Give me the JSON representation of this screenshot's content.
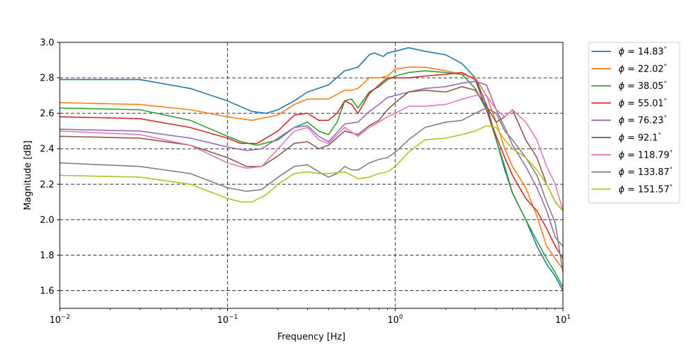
{
  "chart_data": {
    "type": "line",
    "xlabel": "Frequency [Hz]",
    "ylabel": "Magnitude [dB]",
    "xscale": "log",
    "xlim": [
      0.01,
      10
    ],
    "ylim": [
      1.5,
      3.0
    ],
    "grid": "dashed",
    "legend_placement": "outside-right",
    "x_ticks": [
      {
        "value": 0.01,
        "base": "10",
        "exp": "−2"
      },
      {
        "value": 0.1,
        "base": "10",
        "exp": "−1"
      },
      {
        "value": 1,
        "base": "10",
        "exp": "0"
      },
      {
        "value": 10,
        "base": "10",
        "exp": "1"
      }
    ],
    "y_ticks": [
      {
        "value": 1.6,
        "label": "1.6"
      },
      {
        "value": 1.8,
        "label": "1.8"
      },
      {
        "value": 2.0,
        "label": "2.0"
      },
      {
        "value": 2.2,
        "label": "2.2"
      },
      {
        "value": 2.4,
        "label": "2.4"
      },
      {
        "value": 2.6,
        "label": "2.6"
      },
      {
        "value": 2.8,
        "label": "2.8"
      },
      {
        "value": 3.0,
        "label": "3.0"
      }
    ],
    "legend_prefix": "ϕ = ",
    "legend_suffix": "°",
    "series": [
      {
        "name": "14.83",
        "color": "#1f77b4",
        "x": [
          0.01,
          0.03,
          0.06,
          0.1,
          0.14,
          0.17,
          0.2,
          0.25,
          0.3,
          0.4,
          0.5,
          0.55,
          0.6,
          0.7,
          0.75,
          0.85,
          0.9,
          1.0,
          1.1,
          1.2,
          1.5,
          2.0,
          2.5,
          3.0,
          3.5,
          4.0,
          4.5,
          5.0,
          6.0,
          7.0,
          8.0,
          9.0,
          10.0
        ],
        "y": [
          2.79,
          2.79,
          2.74,
          2.67,
          2.61,
          2.6,
          2.62,
          2.67,
          2.72,
          2.76,
          2.84,
          2.85,
          2.86,
          2.93,
          2.94,
          2.92,
          2.94,
          2.95,
          2.96,
          2.97,
          2.95,
          2.93,
          2.88,
          2.8,
          2.65,
          2.45,
          2.28,
          2.15,
          2.0,
          1.85,
          1.75,
          1.68,
          1.6
        ]
      },
      {
        "name": "22.02",
        "color": "#ff7f0e",
        "x": [
          0.01,
          0.03,
          0.06,
          0.1,
          0.14,
          0.2,
          0.25,
          0.3,
          0.4,
          0.5,
          0.55,
          0.6,
          0.7,
          0.8,
          0.9,
          1.0,
          1.2,
          1.5,
          2.0,
          2.5,
          3.0,
          3.5,
          4.0,
          4.5,
          5.0,
          6.0,
          7.0,
          8.0,
          9.0,
          10.0
        ],
        "y": [
          2.66,
          2.65,
          2.62,
          2.58,
          2.56,
          2.59,
          2.65,
          2.68,
          2.68,
          2.73,
          2.73,
          2.74,
          2.8,
          2.8,
          2.81,
          2.85,
          2.86,
          2.86,
          2.84,
          2.82,
          2.8,
          2.7,
          2.55,
          2.4,
          2.3,
          2.18,
          2.02,
          1.85,
          1.78,
          1.72
        ]
      },
      {
        "name": "38.05",
        "color": "#2ca02c",
        "x": [
          0.01,
          0.03,
          0.06,
          0.1,
          0.12,
          0.15,
          0.2,
          0.25,
          0.3,
          0.35,
          0.4,
          0.45,
          0.5,
          0.55,
          0.6,
          0.7,
          0.8,
          0.9,
          1.0,
          1.2,
          1.5,
          2.0,
          2.5,
          3.0,
          3.5,
          4.0,
          4.5,
          5.0,
          6.0,
          7.0,
          8.0,
          9.0,
          10.0
        ],
        "y": [
          2.63,
          2.62,
          2.56,
          2.47,
          2.44,
          2.42,
          2.45,
          2.52,
          2.55,
          2.5,
          2.48,
          2.55,
          2.67,
          2.68,
          2.63,
          2.72,
          2.75,
          2.79,
          2.81,
          2.83,
          2.84,
          2.83,
          2.82,
          2.74,
          2.62,
          2.45,
          2.3,
          2.15,
          2.0,
          1.88,
          1.78,
          1.7,
          1.62
        ]
      },
      {
        "name": "55.01",
        "color": "#d62728",
        "x": [
          0.01,
          0.03,
          0.06,
          0.1,
          0.12,
          0.15,
          0.2,
          0.25,
          0.3,
          0.35,
          0.4,
          0.45,
          0.5,
          0.55,
          0.6,
          0.7,
          0.8,
          0.9,
          1.0,
          1.2,
          1.5,
          2.0,
          2.5,
          3.0,
          3.5,
          4.0,
          4.5,
          5.0,
          6.0,
          7.0,
          8.0,
          9.0,
          10.0
        ],
        "y": [
          2.58,
          2.57,
          2.52,
          2.46,
          2.43,
          2.43,
          2.5,
          2.59,
          2.6,
          2.56,
          2.56,
          2.6,
          2.67,
          2.65,
          2.6,
          2.71,
          2.76,
          2.8,
          2.8,
          2.8,
          2.81,
          2.82,
          2.83,
          2.79,
          2.62,
          2.47,
          2.35,
          2.25,
          2.12,
          2.05,
          1.95,
          1.85,
          1.78
        ]
      },
      {
        "name": "76.23",
        "color": "#9467bd",
        "x": [
          0.01,
          0.03,
          0.06,
          0.1,
          0.13,
          0.16,
          0.2,
          0.25,
          0.3,
          0.35,
          0.4,
          0.5,
          0.6,
          0.7,
          0.8,
          0.9,
          1.0,
          1.2,
          1.5,
          2.0,
          2.5,
          3.0,
          3.5,
          4.0,
          4.5,
          5.0,
          6.0,
          7.0,
          8.0,
          9.0,
          10.0
        ],
        "y": [
          2.51,
          2.5,
          2.46,
          2.41,
          2.39,
          2.4,
          2.46,
          2.52,
          2.53,
          2.47,
          2.44,
          2.54,
          2.55,
          2.61,
          2.65,
          2.69,
          2.7,
          2.72,
          2.74,
          2.75,
          2.77,
          2.78,
          2.76,
          2.62,
          2.52,
          2.42,
          2.3,
          2.18,
          2.05,
          1.9,
          1.85
        ]
      },
      {
        "name": "92.1",
        "color": "#8c564b",
        "x": [
          0.01,
          0.03,
          0.06,
          0.1,
          0.13,
          0.16,
          0.2,
          0.25,
          0.3,
          0.35,
          0.4,
          0.5,
          0.6,
          0.7,
          0.8,
          0.9,
          1.0,
          1.2,
          1.5,
          2.0,
          2.5,
          3.0,
          3.5,
          4.0,
          4.5,
          5.0,
          6.0,
          7.0,
          8.0,
          9.0,
          10.0
        ],
        "y": [
          2.47,
          2.46,
          2.42,
          2.35,
          2.3,
          2.3,
          2.36,
          2.43,
          2.44,
          2.4,
          2.42,
          2.5,
          2.48,
          2.53,
          2.56,
          2.62,
          2.66,
          2.72,
          2.73,
          2.72,
          2.75,
          2.73,
          2.64,
          2.55,
          2.58,
          2.62,
          2.45,
          2.35,
          2.2,
          2.1,
          2.05
        ]
      },
      {
        "name": "118.79",
        "color": "#e377c2",
        "x": [
          0.01,
          0.03,
          0.06,
          0.1,
          0.13,
          0.16,
          0.2,
          0.25,
          0.3,
          0.35,
          0.4,
          0.5,
          0.6,
          0.7,
          0.8,
          0.9,
          1.0,
          1.2,
          1.5,
          2.0,
          2.5,
          3.0,
          3.5,
          4.0,
          4.5,
          5.0,
          6.0,
          7.0,
          8.0,
          9.0,
          10.0
        ],
        "y": [
          2.5,
          2.48,
          2.42,
          2.32,
          2.29,
          2.3,
          2.4,
          2.5,
          2.52,
          2.45,
          2.43,
          2.52,
          2.47,
          2.52,
          2.55,
          2.58,
          2.6,
          2.64,
          2.64,
          2.65,
          2.68,
          2.7,
          2.7,
          2.62,
          2.58,
          2.62,
          2.55,
          2.45,
          2.3,
          2.2,
          2.05
        ]
      },
      {
        "name": "133.87",
        "color": "#7f7f7f",
        "x": [
          0.01,
          0.03,
          0.06,
          0.1,
          0.13,
          0.16,
          0.2,
          0.25,
          0.3,
          0.35,
          0.4,
          0.45,
          0.5,
          0.55,
          0.6,
          0.7,
          0.8,
          0.9,
          1.0,
          1.2,
          1.5,
          2.0,
          2.5,
          3.0,
          3.5,
          4.0,
          4.5,
          5.0,
          6.0,
          7.0,
          8.0,
          9.0,
          10.0
        ],
        "y": [
          2.32,
          2.3,
          2.26,
          2.18,
          2.16,
          2.17,
          2.24,
          2.3,
          2.31,
          2.27,
          2.24,
          2.26,
          2.3,
          2.28,
          2.28,
          2.32,
          2.34,
          2.35,
          2.38,
          2.45,
          2.52,
          2.55,
          2.56,
          2.6,
          2.63,
          2.6,
          2.5,
          2.45,
          2.35,
          2.25,
          2.1,
          1.98,
          1.7
        ]
      },
      {
        "name": "151.57",
        "color": "#bcbd22",
        "x": [
          0.01,
          0.03,
          0.06,
          0.1,
          0.12,
          0.14,
          0.17,
          0.2,
          0.25,
          0.3,
          0.35,
          0.4,
          0.5,
          0.55,
          0.6,
          0.7,
          0.8,
          0.9,
          1.0,
          1.2,
          1.5,
          2.0,
          2.5,
          3.0,
          3.5,
          4.0,
          4.5,
          5.0,
          6.0,
          7.0,
          8.0,
          9.0,
          10.0
        ],
        "y": [
          2.25,
          2.24,
          2.2,
          2.12,
          2.1,
          2.1,
          2.14,
          2.2,
          2.26,
          2.27,
          2.26,
          2.26,
          2.27,
          2.25,
          2.23,
          2.24,
          2.26,
          2.27,
          2.3,
          2.38,
          2.45,
          2.46,
          2.48,
          2.5,
          2.53,
          2.52,
          2.45,
          2.4,
          2.35,
          2.28,
          2.2,
          2.1,
          2.05
        ]
      }
    ]
  }
}
